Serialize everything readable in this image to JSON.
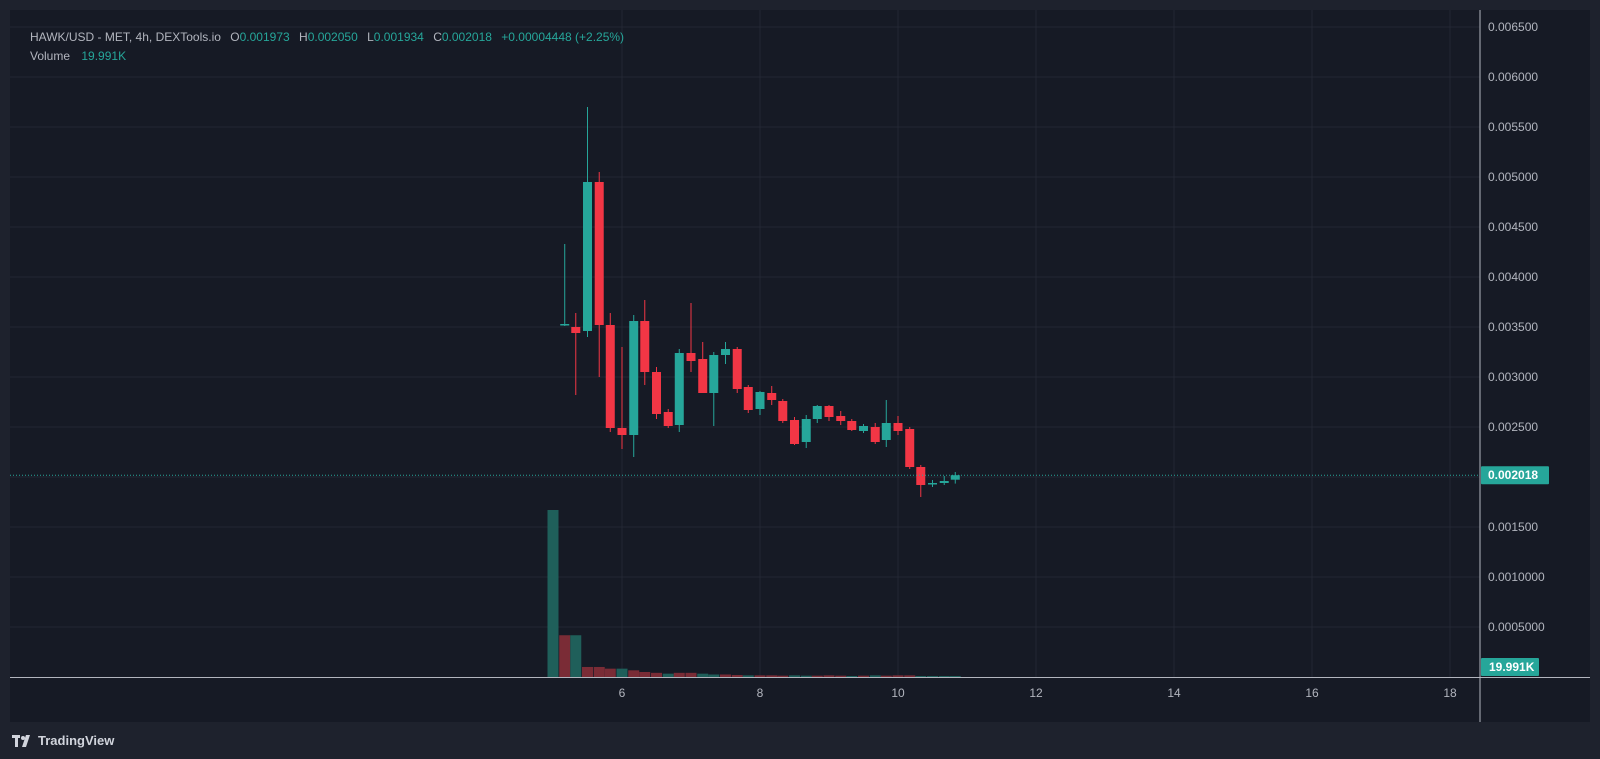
{
  "legend": {
    "symbol": "HAWK/USD - MET, 4h, DEXTools.io",
    "o_label": "O",
    "o_value": "0.001973",
    "h_label": "H",
    "h_value": "0.002050",
    "l_label": "L",
    "l_value": "0.001934",
    "c_label": "C",
    "c_value": "0.002018",
    "change": "+0.00004448 (+2.25%)",
    "volume_label": "Volume",
    "volume_value": "19.991K"
  },
  "footer": {
    "brand": "TradingView"
  },
  "colors": {
    "up": "#26a69a",
    "down": "#f23645",
    "up_vol": "#1f5f5a",
    "down_vol": "#7a2c36",
    "bg": "#161a25",
    "grid": "#232733",
    "text": "#b2b5be"
  },
  "chart_data": {
    "type": "candlestick",
    "title": "HAWK/USD - MET, 4h, DEXTools.io",
    "x_ticks": [
      "6",
      "8",
      "10",
      "12",
      "14",
      "16",
      "18"
    ],
    "x_tick_values": [
      6,
      8,
      10,
      12,
      14,
      16,
      18
    ],
    "xlim": [
      4.5,
      18.5
    ],
    "y_ticks": [
      "0.006500",
      "0.006000",
      "0.005500",
      "0.005000",
      "0.004500",
      "0.004000",
      "0.003500",
      "0.003000",
      "0.002500",
      "0.001500",
      "0.0010000",
      "0.0005000"
    ],
    "y_tick_values": [
      0.0065,
      0.006,
      0.0055,
      0.005,
      0.0045,
      0.004,
      0.0035,
      0.003,
      0.0025,
      0.0015,
      0.001,
      0.0005
    ],
    "ylim": [
      0.0,
      0.00667
    ],
    "last_price": 0.002018,
    "last_price_label": "0.002018",
    "last_volume_label": "19.991K",
    "candles": [
      {
        "t": 5.17,
        "o": 0.00352,
        "h": 0.00433,
        "l": 0.00351,
        "c": 0.00353
      },
      {
        "t": 5.33,
        "o": 0.0035,
        "h": 0.00364,
        "l": 0.00282,
        "c": 0.00344
      },
      {
        "t": 5.5,
        "o": 0.00346,
        "h": 0.0057,
        "l": 0.0034,
        "c": 0.00495
      },
      {
        "t": 5.67,
        "o": 0.00495,
        "h": 0.00505,
        "l": 0.003,
        "c": 0.00352
      },
      {
        "t": 5.83,
        "o": 0.00352,
        "h": 0.00364,
        "l": 0.00245,
        "c": 0.00249
      },
      {
        "t": 6.0,
        "o": 0.00249,
        "h": 0.0033,
        "l": 0.00228,
        "c": 0.00242
      },
      {
        "t": 6.17,
        "o": 0.00242,
        "h": 0.00362,
        "l": 0.0022,
        "c": 0.00356
      },
      {
        "t": 6.33,
        "o": 0.00356,
        "h": 0.00377,
        "l": 0.00292,
        "c": 0.00305
      },
      {
        "t": 6.5,
        "o": 0.00305,
        "h": 0.0031,
        "l": 0.00258,
        "c": 0.00263
      },
      {
        "t": 6.67,
        "o": 0.00265,
        "h": 0.00268,
        "l": 0.00249,
        "c": 0.00251
      },
      {
        "t": 6.83,
        "o": 0.00252,
        "h": 0.00328,
        "l": 0.00245,
        "c": 0.00324
      },
      {
        "t": 7.0,
        "o": 0.00324,
        "h": 0.00374,
        "l": 0.00305,
        "c": 0.00316
      },
      {
        "t": 7.17,
        "o": 0.00318,
        "h": 0.00335,
        "l": 0.00284,
        "c": 0.00284
      },
      {
        "t": 7.33,
        "o": 0.00284,
        "h": 0.00325,
        "l": 0.00251,
        "c": 0.00322
      },
      {
        "t": 7.5,
        "o": 0.00322,
        "h": 0.00335,
        "l": 0.00313,
        "c": 0.00328
      },
      {
        "t": 7.67,
        "o": 0.00328,
        "h": 0.0033,
        "l": 0.00284,
        "c": 0.00288
      },
      {
        "t": 7.83,
        "o": 0.0029,
        "h": 0.00292,
        "l": 0.00264,
        "c": 0.00267
      },
      {
        "t": 8.0,
        "o": 0.00268,
        "h": 0.00286,
        "l": 0.00262,
        "c": 0.00285
      },
      {
        "t": 8.17,
        "o": 0.00284,
        "h": 0.00291,
        "l": 0.00272,
        "c": 0.00277
      },
      {
        "t": 8.33,
        "o": 0.00276,
        "h": 0.00278,
        "l": 0.00254,
        "c": 0.00256
      },
      {
        "t": 8.5,
        "o": 0.00257,
        "h": 0.0026,
        "l": 0.00232,
        "c": 0.00233
      },
      {
        "t": 8.67,
        "o": 0.00235,
        "h": 0.00262,
        "l": 0.00229,
        "c": 0.00258
      },
      {
        "t": 8.83,
        "o": 0.00258,
        "h": 0.00272,
        "l": 0.00254,
        "c": 0.00271
      },
      {
        "t": 9.0,
        "o": 0.00271,
        "h": 0.00272,
        "l": 0.00256,
        "c": 0.0026
      },
      {
        "t": 9.17,
        "o": 0.00261,
        "h": 0.00266,
        "l": 0.00252,
        "c": 0.00256
      },
      {
        "t": 9.33,
        "o": 0.00256,
        "h": 0.00258,
        "l": 0.00246,
        "c": 0.00247
      },
      {
        "t": 9.5,
        "o": 0.00246,
        "h": 0.00253,
        "l": 0.00244,
        "c": 0.00251
      },
      {
        "t": 9.67,
        "o": 0.0025,
        "h": 0.00254,
        "l": 0.00233,
        "c": 0.00235
      },
      {
        "t": 9.83,
        "o": 0.00237,
        "h": 0.00277,
        "l": 0.0023,
        "c": 0.00254
      },
      {
        "t": 10.0,
        "o": 0.00254,
        "h": 0.00261,
        "l": 0.00242,
        "c": 0.00246
      },
      {
        "t": 10.17,
        "o": 0.00248,
        "h": 0.0025,
        "l": 0.00208,
        "c": 0.0021
      },
      {
        "t": 10.33,
        "o": 0.0021,
        "h": 0.00212,
        "l": 0.0018,
        "c": 0.00192
      },
      {
        "t": 10.5,
        "o": 0.00193,
        "h": 0.00197,
        "l": 0.0019,
        "c": 0.00194
      },
      {
        "t": 10.67,
        "o": 0.00194,
        "h": 0.00201,
        "l": 0.00192,
        "c": 0.00196
      },
      {
        "t": 10.83,
        "o": 0.001973,
        "h": 0.00205,
        "l": 0.001934,
        "c": 0.002018
      }
    ],
    "volume": [
      {
        "t": 5.0,
        "v": 1.0,
        "dir": "up"
      },
      {
        "t": 5.17,
        "v": 0.25,
        "dir": "down"
      },
      {
        "t": 5.33,
        "v": 0.25,
        "dir": "up"
      },
      {
        "t": 5.5,
        "v": 0.06,
        "dir": "down"
      },
      {
        "t": 5.67,
        "v": 0.06,
        "dir": "down"
      },
      {
        "t": 5.83,
        "v": 0.05,
        "dir": "down"
      },
      {
        "t": 6.0,
        "v": 0.05,
        "dir": "up"
      },
      {
        "t": 6.17,
        "v": 0.04,
        "dir": "down"
      },
      {
        "t": 6.33,
        "v": 0.03,
        "dir": "down"
      },
      {
        "t": 6.5,
        "v": 0.025,
        "dir": "down"
      },
      {
        "t": 6.67,
        "v": 0.02,
        "dir": "up"
      },
      {
        "t": 6.83,
        "v": 0.025,
        "dir": "down"
      },
      {
        "t": 7.0,
        "v": 0.025,
        "dir": "down"
      },
      {
        "t": 7.17,
        "v": 0.02,
        "dir": "up"
      },
      {
        "t": 7.33,
        "v": 0.015,
        "dir": "up"
      },
      {
        "t": 7.5,
        "v": 0.015,
        "dir": "down"
      },
      {
        "t": 7.67,
        "v": 0.012,
        "dir": "down"
      },
      {
        "t": 7.83,
        "v": 0.01,
        "dir": "up"
      },
      {
        "t": 8.0,
        "v": 0.01,
        "dir": "down"
      },
      {
        "t": 8.17,
        "v": 0.01,
        "dir": "down"
      },
      {
        "t": 8.33,
        "v": 0.008,
        "dir": "down"
      },
      {
        "t": 8.5,
        "v": 0.01,
        "dir": "up"
      },
      {
        "t": 8.67,
        "v": 0.008,
        "dir": "up"
      },
      {
        "t": 8.83,
        "v": 0.008,
        "dir": "down"
      },
      {
        "t": 9.0,
        "v": 0.01,
        "dir": "down"
      },
      {
        "t": 9.17,
        "v": 0.008,
        "dir": "down"
      },
      {
        "t": 9.33,
        "v": 0.006,
        "dir": "up"
      },
      {
        "t": 9.5,
        "v": 0.008,
        "dir": "down"
      },
      {
        "t": 9.67,
        "v": 0.01,
        "dir": "up"
      },
      {
        "t": 9.83,
        "v": 0.008,
        "dir": "down"
      },
      {
        "t": 10.0,
        "v": 0.01,
        "dir": "down"
      },
      {
        "t": 10.17,
        "v": 0.01,
        "dir": "down"
      },
      {
        "t": 10.33,
        "v": 0.006,
        "dir": "up"
      },
      {
        "t": 10.5,
        "v": 0.006,
        "dir": "up"
      },
      {
        "t": 10.67,
        "v": 0.006,
        "dir": "up"
      },
      {
        "t": 10.83,
        "v": 0.006,
        "dir": "up"
      }
    ]
  }
}
